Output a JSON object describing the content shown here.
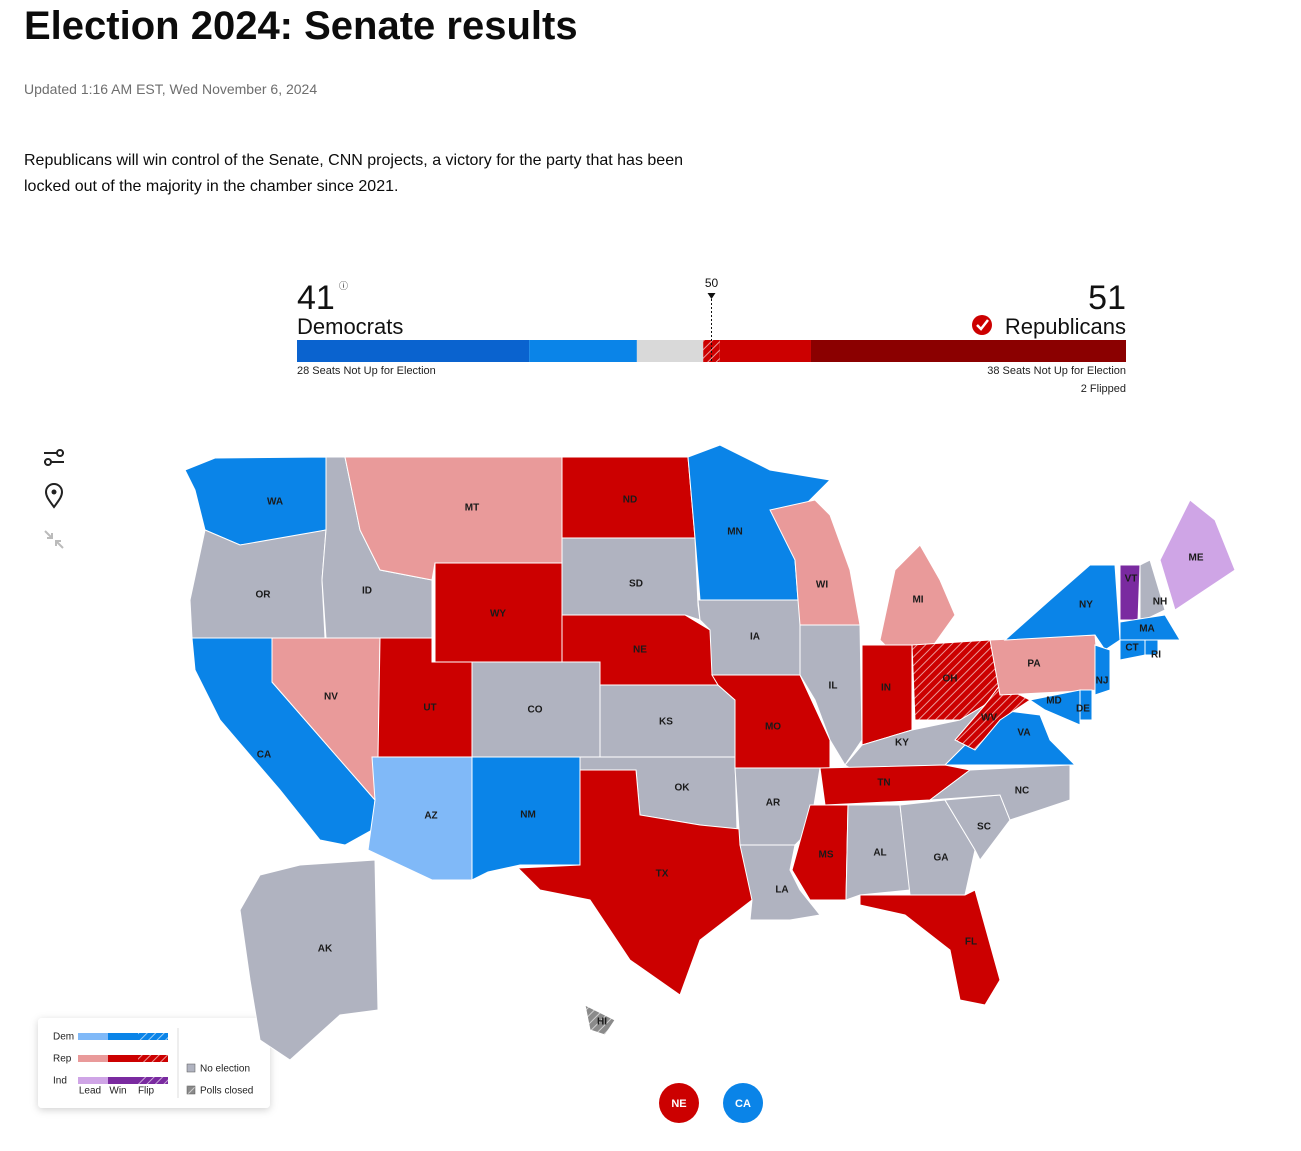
{
  "header": {
    "title": "Election 2024: Senate results",
    "updated": "Updated 1:16 AM EST, Wed November 6, 2024",
    "description": "Republicans will win control of the Senate, CNN projects, a victory for the party that has been locked out of the majority in the chamber since 2021."
  },
  "balance": {
    "dem_count": 41,
    "dem_label": "Democrats",
    "rep_count": 51,
    "rep_label": "Republicans",
    "majority": 50,
    "segments": [
      {
        "value": 28,
        "color": "#0a63cf"
      },
      {
        "value": 13,
        "color": "#0a84e8"
      },
      {
        "value": 8,
        "color": "#d9d9d9"
      },
      {
        "value": 2,
        "color": "#cc0000",
        "hatched": true
      },
      {
        "value": 11,
        "color": "#cc0000"
      },
      {
        "value": 38,
        "color": "#8b0000"
      }
    ],
    "dem_note": "28 Seats Not Up for Election",
    "rep_note": "38 Seats Not Up for Election",
    "flipped_note": "2 Flipped"
  },
  "map": {
    "states": [
      {
        "label": "WA",
        "color": "#0a84e8"
      },
      {
        "label": "OR",
        "color": "#b0b3c0"
      },
      {
        "label": "CA",
        "color": "#0a84e8"
      },
      {
        "label": "NV",
        "color": "#e99a9a"
      },
      {
        "label": "ID",
        "color": "#b0b3c0"
      },
      {
        "label": "MT",
        "color": "#e99a9a"
      },
      {
        "label": "WY",
        "color": "#cc0000"
      },
      {
        "label": "UT",
        "color": "#cc0000"
      },
      {
        "label": "CO",
        "color": "#b0b3c0"
      },
      {
        "label": "AZ",
        "color": "#80b9f8"
      },
      {
        "label": "NM",
        "color": "#0a84e8"
      },
      {
        "label": "ND",
        "color": "#cc0000"
      },
      {
        "label": "SD",
        "color": "#b0b3c0"
      },
      {
        "label": "NE",
        "color": "#cc0000"
      },
      {
        "label": "KS",
        "color": "#b0b3c0"
      },
      {
        "label": "OK",
        "color": "#b0b3c0"
      },
      {
        "label": "TX",
        "color": "#cc0000"
      },
      {
        "label": "MN",
        "color": "#0a84e8"
      },
      {
        "label": "IA",
        "color": "#b0b3c0"
      },
      {
        "label": "MO",
        "color": "#cc0000"
      },
      {
        "label": "AR",
        "color": "#b0b3c0"
      },
      {
        "label": "LA",
        "color": "#b0b3c0"
      },
      {
        "label": "WI",
        "color": "#e99a9a"
      },
      {
        "label": "IL",
        "color": "#b0b3c0"
      },
      {
        "label": "MI",
        "color": "#e99a9a"
      },
      {
        "label": "IN",
        "color": "#cc0000"
      },
      {
        "label": "OH",
        "color": "#cc0000",
        "hatched": true
      },
      {
        "label": "KY",
        "color": "#b0b3c0"
      },
      {
        "label": "TN",
        "color": "#cc0000"
      },
      {
        "label": "MS",
        "color": "#cc0000"
      },
      {
        "label": "AL",
        "color": "#b0b3c0"
      },
      {
        "label": "GA",
        "color": "#b0b3c0"
      },
      {
        "label": "FL",
        "color": "#cc0000"
      },
      {
        "label": "SC",
        "color": "#b0b3c0"
      },
      {
        "label": "NC",
        "color": "#b0b3c0"
      },
      {
        "label": "VA",
        "color": "#0a84e8"
      },
      {
        "label": "WV",
        "color": "#cc0000",
        "hatched": true
      },
      {
        "label": "PA",
        "color": "#e99a9a"
      },
      {
        "label": "NY",
        "color": "#0a84e8"
      },
      {
        "label": "NJ",
        "color": "#0a84e8"
      },
      {
        "label": "DE",
        "color": "#0a84e8"
      },
      {
        "label": "MD",
        "color": "#0a84e8"
      },
      {
        "label": "VT",
        "color": "#7a2aa0"
      },
      {
        "label": "NH",
        "color": "#b0b3c0"
      },
      {
        "label": "ME",
        "color": "#cfa5e6"
      },
      {
        "label": "MA",
        "color": "#0a84e8"
      },
      {
        "label": "CT",
        "color": "#0a84e8"
      },
      {
        "label": "RI",
        "color": "#0a84e8"
      },
      {
        "label": "AK",
        "color": "#b0b3c0"
      },
      {
        "label": "HI",
        "color": "#8a8a8a",
        "hatched": true
      }
    ],
    "bubbles": [
      {
        "label": "NE",
        "color": "#cc0000"
      },
      {
        "label": "CA",
        "color": "#0a84e8"
      }
    ],
    "legend": {
      "rows": [
        "Dem",
        "Rep",
        "Ind"
      ],
      "columns": [
        "Lead",
        "Win",
        "Flip"
      ],
      "no_election": "No election",
      "polls_closed": "Polls closed"
    }
  }
}
